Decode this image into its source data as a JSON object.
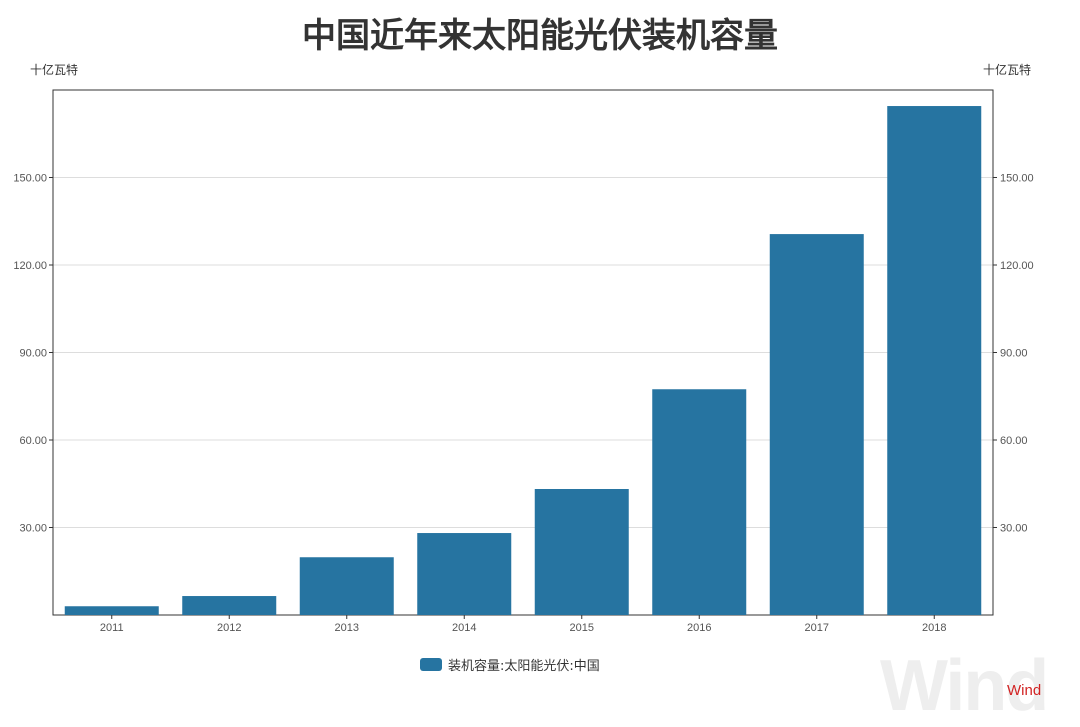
{
  "brand": "Wind",
  "watermark": "Wind",
  "colors": {
    "bar": "#2674a1",
    "grid": "#dddddd",
    "axis": "#333333",
    "brand": "#d22323"
  },
  "chart_data": {
    "type": "bar",
    "title": "中国近年来太阳能光伏装机容量",
    "y_unit_left": "十亿瓦特",
    "y_unit_right": "十亿瓦特",
    "categories": [
      "2011",
      "2012",
      "2013",
      "2014",
      "2015",
      "2016",
      "2017",
      "2018"
    ],
    "series": [
      {
        "name": "装机容量:太阳能光伏:中国",
        "values": [
          3.0,
          6.5,
          19.8,
          28.1,
          43.2,
          77.4,
          130.6,
          174.5
        ]
      }
    ],
    "ylim": [
      0,
      180
    ],
    "y_ticks": [
      30,
      60,
      90,
      120,
      150
    ],
    "y_tick_labels": [
      "30.00",
      "60.00",
      "90.00",
      "120.00",
      "150.00"
    ],
    "grid": true,
    "legend_position": "bottom-center"
  }
}
